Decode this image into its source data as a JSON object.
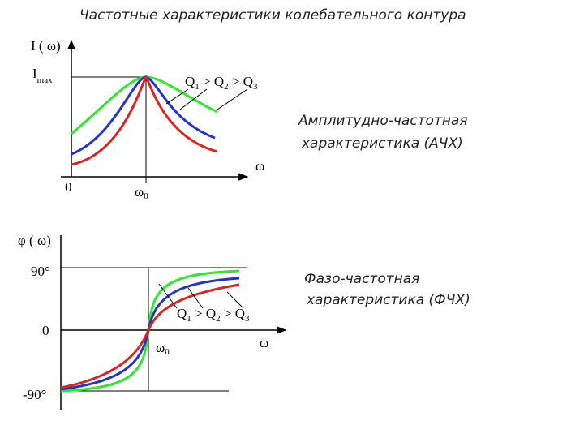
{
  "title": "Частотные  характеристики колебательного контура",
  "amplitude": {
    "y_label": "I ( ω)",
    "imax": [
      "I",
      "max"
    ],
    "zero": "0",
    "omega0": [
      "ω",
      "0"
    ],
    "x_label": "ω",
    "q_order": [
      "Q",
      "1",
      " > Q",
      "2",
      " > Q",
      "3"
    ],
    "caption": [
      "Амплитудно-частотная",
      "характеристика (АЧХ)"
    ]
  },
  "phase": {
    "y_label": "φ ( ω)",
    "plus90": "90°",
    "zero": "0",
    "minus90": "-90°",
    "omega0": [
      "ω",
      "0"
    ],
    "x_label": "ω",
    "q_order": [
      "Q",
      "1",
      " > Q",
      "2",
      " > Q",
      "3"
    ],
    "caption": [
      "Фазо-частотная",
      "характеристика (ФЧХ)"
    ]
  }
}
